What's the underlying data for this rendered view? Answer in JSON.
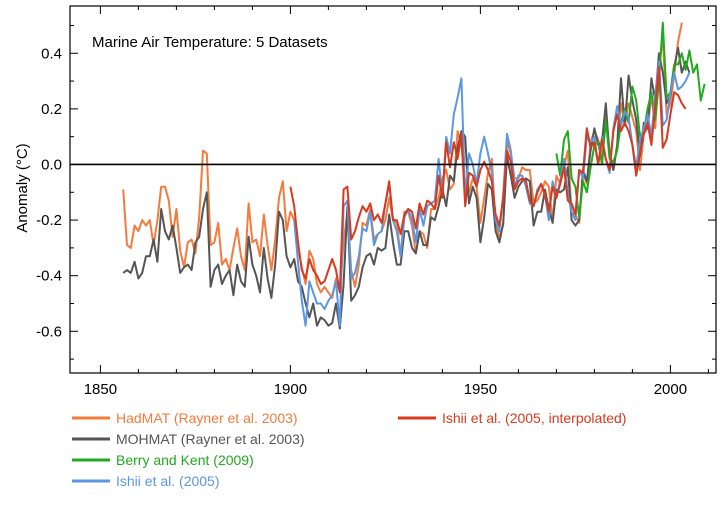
{
  "chart_data": {
    "type": "line",
    "title": "Marine Air Temperature: 5 Datasets",
    "xlabel": "",
    "ylabel": "Anomaly (°C)",
    "xlim": [
      1842,
      2012
    ],
    "ylim": [
      -0.75,
      0.57
    ],
    "xticks": [
      1850,
      1900,
      1950,
      2000
    ],
    "xtick_labels": [
      "1850",
      "1900",
      "1950",
      "2000"
    ],
    "yticks": [
      -0.6,
      -0.4,
      -0.2,
      0.0,
      0.2,
      0.4
    ],
    "ytick_labels": [
      "-0.6",
      "-0.4",
      "-0.2",
      "0.0",
      "0.2",
      "0.4"
    ],
    "zero_line": true,
    "grid": false,
    "legend_position": "bottom",
    "series": [
      {
        "name": "HadMAT (Rayner et al. 2003)",
        "color": "#f47b3c",
        "x": [
          1856,
          1857,
          1858,
          1859,
          1860,
          1861,
          1862,
          1863,
          1864,
          1865,
          1866,
          1867,
          1868,
          1869,
          1870,
          1871,
          1872,
          1873,
          1874,
          1875,
          1876,
          1877,
          1878,
          1879,
          1880,
          1881,
          1882,
          1883,
          1884,
          1885,
          1886,
          1887,
          1888,
          1889,
          1890,
          1891,
          1892,
          1893,
          1894,
          1895,
          1896,
          1897,
          1898,
          1899,
          1900,
          1901,
          1902,
          1903,
          1904,
          1905,
          1906,
          1907,
          1908,
          1909,
          1910,
          1911,
          1912,
          1913,
          1914,
          1915,
          1916,
          1917,
          1918,
          1919,
          1920,
          1921,
          1922,
          1923,
          1924,
          1925,
          1926,
          1927,
          1928,
          1929,
          1930,
          1931,
          1932,
          1933,
          1934,
          1935,
          1936,
          1937,
          1938,
          1939,
          1940,
          1941,
          1942,
          1943,
          1944,
          1945,
          1946,
          1947,
          1948,
          1949,
          1950,
          1951,
          1952,
          1953,
          1954,
          1955,
          1956,
          1957,
          1958,
          1959,
          1960,
          1961,
          1962,
          1963,
          1964,
          1965,
          1966,
          1967,
          1968,
          1969,
          1970,
          1971,
          1972,
          1973,
          1974,
          1975,
          1976,
          1977,
          1978,
          1979,
          1980,
          1981,
          1982,
          1983,
          1984,
          1985,
          1986,
          1987,
          1988,
          1989,
          1990,
          1991,
          1992,
          1993,
          1994,
          1995,
          1996,
          1997,
          1998,
          1999,
          2000,
          2001,
          2002,
          2003
        ],
        "y": [
          -0.09,
          -0.29,
          -0.3,
          -0.22,
          -0.24,
          -0.2,
          -0.22,
          -0.2,
          -0.29,
          -0.2,
          -0.08,
          -0.08,
          -0.13,
          -0.26,
          -0.16,
          -0.31,
          -0.37,
          -0.28,
          -0.27,
          -0.32,
          -0.19,
          0.05,
          0.04,
          -0.29,
          -0.28,
          -0.21,
          -0.36,
          -0.34,
          -0.38,
          -0.3,
          -0.23,
          -0.33,
          -0.38,
          -0.14,
          -0.28,
          -0.27,
          -0.33,
          -0.18,
          -0.29,
          -0.38,
          -0.27,
          -0.12,
          -0.06,
          -0.24,
          -0.17,
          -0.2,
          -0.3,
          -0.37,
          -0.43,
          -0.31,
          -0.34,
          -0.43,
          -0.46,
          -0.44,
          -0.46,
          -0.48,
          -0.41,
          -0.46,
          -0.28,
          -0.17,
          -0.38,
          -0.44,
          -0.36,
          -0.21,
          -0.22,
          -0.16,
          -0.27,
          -0.25,
          -0.24,
          -0.2,
          -0.12,
          -0.2,
          -0.21,
          -0.33,
          -0.17,
          -0.17,
          -0.22,
          -0.32,
          -0.24,
          -0.25,
          -0.3,
          -0.16,
          -0.16,
          -0.12,
          -0.05,
          -0.02,
          -0.09,
          -0.07,
          0.12,
          0.07,
          -0.08,
          -0.1,
          -0.05,
          -0.08,
          -0.21,
          -0.12,
          -0.03,
          0.02,
          -0.22,
          -0.26,
          -0.22,
          0.08,
          0.04,
          -0.05,
          -0.05,
          -0.01,
          -0.02,
          -0.02,
          -0.14,
          -0.13,
          -0.1,
          -0.06,
          -0.08,
          -0.2,
          -0.04,
          -0.07,
          -0.01,
          0.05,
          -0.17,
          -0.18,
          -0.21,
          -0.03,
          -0.07,
          0.08,
          0.12,
          0.09,
          0.03,
          0.17,
          0.05,
          -0.02,
          0.07,
          0.22,
          0.14,
          0.22,
          0.17,
          0.12,
          -0.02,
          0.11,
          0.13,
          0.25,
          0.13,
          0.35,
          0.46,
          0.18,
          0.22,
          0.32,
          0.44,
          0.51
        ]
      },
      {
        "name": "MOHMAT (Rayner et al. 2003)",
        "color": "#555555",
        "x": [
          1856,
          1857,
          1858,
          1859,
          1860,
          1861,
          1862,
          1863,
          1864,
          1865,
          1866,
          1867,
          1868,
          1869,
          1870,
          1871,
          1872,
          1873,
          1874,
          1875,
          1876,
          1877,
          1878,
          1879,
          1880,
          1881,
          1882,
          1883,
          1884,
          1885,
          1886,
          1887,
          1888,
          1889,
          1890,
          1891,
          1892,
          1893,
          1894,
          1895,
          1896,
          1897,
          1898,
          1899,
          1900,
          1901,
          1902,
          1903,
          1904,
          1905,
          1906,
          1907,
          1908,
          1909,
          1910,
          1911,
          1912,
          1913,
          1914,
          1915,
          1916,
          1917,
          1918,
          1919,
          1920,
          1921,
          1922,
          1923,
          1924,
          1925,
          1926,
          1927,
          1928,
          1929,
          1930,
          1931,
          1932,
          1933,
          1934,
          1935,
          1936,
          1937,
          1938,
          1939,
          1940,
          1941,
          1942,
          1943,
          1944,
          1945,
          1946,
          1947,
          1948,
          1949,
          1950,
          1951,
          1952,
          1953,
          1954,
          1955,
          1956,
          1957,
          1958,
          1959,
          1960,
          1961,
          1962,
          1963,
          1964,
          1965,
          1966,
          1967,
          1968,
          1969,
          1970,
          1971,
          1972,
          1973,
          1974,
          1975,
          1976,
          1977,
          1978,
          1979,
          1980,
          1981,
          1982,
          1983,
          1984,
          1985,
          1986,
          1987,
          1988,
          1989,
          1990,
          1991,
          1992,
          1993,
          1994,
          1995,
          1996,
          1997,
          1998,
          1999,
          2000,
          2001,
          2002,
          2003,
          2004,
          2005
        ],
        "y": [
          -0.39,
          -0.38,
          -0.39,
          -0.35,
          -0.41,
          -0.39,
          -0.33,
          -0.33,
          -0.27,
          -0.35,
          -0.16,
          -0.24,
          -0.27,
          -0.22,
          -0.3,
          -0.39,
          -0.37,
          -0.36,
          -0.38,
          -0.28,
          -0.26,
          -0.16,
          -0.1,
          -0.44,
          -0.38,
          -0.36,
          -0.43,
          -0.4,
          -0.38,
          -0.47,
          -0.36,
          -0.42,
          -0.44,
          -0.26,
          -0.36,
          -0.4,
          -0.46,
          -0.3,
          -0.41,
          -0.48,
          -0.36,
          -0.17,
          -0.2,
          -0.33,
          -0.37,
          -0.34,
          -0.42,
          -0.44,
          -0.5,
          -0.55,
          -0.5,
          -0.58,
          -0.55,
          -0.56,
          -0.58,
          -0.57,
          -0.5,
          -0.59,
          -0.43,
          -0.15,
          -0.49,
          -0.47,
          -0.44,
          -0.37,
          -0.33,
          -0.32,
          -0.36,
          -0.3,
          -0.31,
          -0.3,
          -0.18,
          -0.28,
          -0.36,
          -0.36,
          -0.24,
          -0.24,
          -0.3,
          -0.32,
          -0.24,
          -0.29,
          -0.29,
          -0.19,
          -0.2,
          -0.15,
          -0.09,
          -0.15,
          -0.04,
          -0.06,
          0.06,
          0.12,
          0.1,
          -0.14,
          -0.08,
          -0.12,
          -0.28,
          -0.19,
          -0.07,
          -0.09,
          -0.24,
          -0.28,
          -0.21,
          0.03,
          -0.04,
          -0.12,
          -0.08,
          -0.06,
          -0.05,
          -0.06,
          -0.22,
          -0.17,
          -0.17,
          -0.09,
          -0.16,
          -0.21,
          -0.09,
          -0.1,
          -0.09,
          -0.01,
          -0.2,
          -0.22,
          -0.2,
          -0.02,
          -0.06,
          0.05,
          0.13,
          0.07,
          0.08,
          0.22,
          0.03,
          -0.02,
          0.07,
          0.31,
          0.14,
          0.32,
          0.23,
          0.16,
          0.03,
          0.15,
          0.13,
          0.31,
          0.23,
          0.4,
          0.33,
          0.22,
          0.25,
          0.35,
          0.42,
          0.33,
          0.37,
          0.33
        ]
      },
      {
        "name": "Berry and Kent (2009)",
        "color": "#22a91f",
        "x": [
          1970,
          1971,
          1972,
          1973,
          1974,
          1975,
          1976,
          1977,
          1978,
          1979,
          1980,
          1981,
          1982,
          1983,
          1984,
          1985,
          1986,
          1987,
          1988,
          1989,
          1990,
          1991,
          1992,
          1993,
          1994,
          1995,
          1996,
          1997,
          1998,
          1999,
          2000,
          2001,
          2002,
          2003,
          2004,
          2005,
          2006,
          2007,
          2008,
          2009
        ],
        "y": [
          0.04,
          -0.04,
          0.09,
          0.12,
          -0.05,
          -0.08,
          -0.19,
          -0.06,
          -0.1,
          -0.01,
          0.07,
          0.08,
          0.0,
          0.16,
          0.02,
          0.01,
          0.05,
          0.15,
          0.2,
          0.15,
          0.28,
          0.23,
          0.1,
          0.12,
          0.2,
          0.26,
          0.16,
          0.3,
          0.51,
          0.24,
          0.26,
          0.36,
          0.36,
          0.4,
          0.34,
          0.41,
          0.33,
          0.36,
          0.23,
          0.29
        ]
      },
      {
        "name": "Ishii et al. (2005)",
        "color": "#5b97e2",
        "x": [
          1901,
          1902,
          1903,
          1904,
          1905,
          1906,
          1907,
          1908,
          1909,
          1910,
          1911,
          1912,
          1913,
          1914,
          1915,
          1916,
          1917,
          1918,
          1919,
          1920,
          1921,
          1922,
          1923,
          1924,
          1925,
          1926,
          1927,
          1928,
          1929,
          1930,
          1931,
          1932,
          1933,
          1934,
          1935,
          1936,
          1937,
          1938,
          1939,
          1940,
          1941,
          1942,
          1943,
          1944,
          1945,
          1946,
          1947,
          1948,
          1949,
          1950,
          1951,
          1952,
          1953,
          1954,
          1955,
          1956,
          1957,
          1958,
          1959,
          1960,
          1961,
          1962,
          1963,
          1964,
          1965,
          1966,
          1967,
          1968,
          1969,
          1970,
          1971,
          1972,
          1973,
          1974,
          1975,
          1976,
          1977,
          1978,
          1979,
          1980,
          1981,
          1982,
          1983,
          1984,
          1985,
          1986,
          1987,
          1988,
          1989,
          1990,
          1991,
          1992,
          1993,
          1994,
          1995,
          1996,
          1997,
          1998,
          1999,
          2000,
          2001,
          2002,
          2003,
          2004,
          2005
        ],
        "y": [
          -0.2,
          -0.35,
          -0.49,
          -0.58,
          -0.42,
          -0.46,
          -0.5,
          -0.5,
          -0.52,
          -0.49,
          -0.47,
          -0.42,
          -0.58,
          -0.15,
          -0.13,
          -0.41,
          -0.39,
          -0.33,
          -0.23,
          -0.24,
          -0.17,
          -0.29,
          -0.25,
          -0.24,
          -0.14,
          -0.07,
          -0.2,
          -0.24,
          -0.33,
          -0.19,
          -0.16,
          -0.2,
          -0.28,
          -0.16,
          -0.22,
          -0.15,
          -0.14,
          -0.13,
          0.02,
          -0.11,
          0.1,
          0.04,
          0.18,
          0.24,
          0.31,
          -0.12,
          0.04,
          0.0,
          -0.07,
          0.04,
          0.1,
          0.04,
          -0.03,
          -0.2,
          -0.24,
          -0.11,
          0.11,
          0.05,
          -0.08,
          -0.04,
          -0.04,
          -0.08,
          -0.14,
          -0.15,
          -0.09,
          -0.07,
          -0.11,
          -0.2,
          -0.06,
          -0.12,
          -0.06,
          0.02,
          -0.11,
          -0.17,
          -0.2,
          -0.02,
          -0.05,
          0.1,
          0.08,
          0.1,
          0.0,
          0.1,
          0.02,
          -0.03,
          0.13,
          0.21,
          0.14,
          0.19,
          0.17,
          0.07,
          -0.01,
          0.09,
          0.13,
          0.18,
          0.1,
          0.25,
          0.37,
          0.14,
          0.16,
          0.26,
          0.33,
          0.27,
          0.28,
          0.3,
          0.33
        ]
      },
      {
        "name": "Ishii et al. (2005, interpolated)",
        "color": "#d9391c",
        "x": [
          1900,
          1901,
          1902,
          1903,
          1904,
          1905,
          1906,
          1907,
          1908,
          1909,
          1910,
          1911,
          1912,
          1913,
          1914,
          1915,
          1916,
          1917,
          1918,
          1919,
          1920,
          1921,
          1922,
          1923,
          1924,
          1925,
          1926,
          1927,
          1928,
          1929,
          1930,
          1931,
          1932,
          1933,
          1934,
          1935,
          1936,
          1937,
          1938,
          1939,
          1940,
          1941,
          1942,
          1943,
          1944,
          1945,
          1946,
          1947,
          1948,
          1949,
          1950,
          1951,
          1952,
          1953,
          1954,
          1955,
          1956,
          1957,
          1958,
          1959,
          1960,
          1961,
          1962,
          1963,
          1964,
          1965,
          1966,
          1967,
          1968,
          1969,
          1970,
          1971,
          1972,
          1973,
          1974,
          1975,
          1976,
          1977,
          1978,
          1979,
          1980,
          1981,
          1982,
          1983,
          1984,
          1985,
          1986,
          1987,
          1988,
          1989,
          1990,
          1991,
          1992,
          1993,
          1994,
          1995,
          1996,
          1997,
          1998,
          1999,
          2000,
          2001,
          2002,
          2003,
          2004
        ],
        "y": [
          -0.08,
          -0.15,
          -0.28,
          -0.38,
          -0.41,
          -0.34,
          -0.38,
          -0.4,
          -0.43,
          -0.42,
          -0.38,
          -0.34,
          -0.38,
          -0.46,
          -0.09,
          -0.08,
          -0.27,
          -0.24,
          -0.19,
          -0.15,
          -0.17,
          -0.14,
          -0.2,
          -0.18,
          -0.21,
          -0.14,
          -0.06,
          -0.2,
          -0.2,
          -0.25,
          -0.18,
          -0.16,
          -0.17,
          -0.23,
          -0.14,
          -0.18,
          -0.13,
          -0.14,
          -0.16,
          -0.04,
          -0.12,
          0.08,
          -0.01,
          0.08,
          0.02,
          0.11,
          -0.15,
          -0.03,
          -0.04,
          -0.08,
          -0.02,
          0.01,
          -0.02,
          -0.06,
          -0.18,
          -0.22,
          -0.12,
          0.05,
          0.01,
          -0.09,
          -0.06,
          -0.05,
          -0.06,
          -0.13,
          -0.15,
          -0.1,
          -0.07,
          -0.11,
          -0.17,
          -0.08,
          -0.12,
          -0.07,
          -0.01,
          -0.13,
          -0.14,
          -0.18,
          -0.02,
          -0.03,
          0.13,
          0.06,
          0.08,
          0.0,
          0.09,
          0.02,
          -0.02,
          0.12,
          0.18,
          0.12,
          0.15,
          0.12,
          0.07,
          -0.04,
          0.04,
          0.11,
          0.15,
          0.07,
          0.21,
          0.35,
          0.06,
          0.09,
          0.18,
          0.26,
          0.25,
          0.22,
          0.2
        ]
      }
    ],
    "legend": [
      {
        "label": "HadMAT (Rayner et al. 2003)",
        "color": "#f47b3c"
      },
      {
        "label": "MOHMAT (Rayner et al. 2003)",
        "color": "#555555"
      },
      {
        "label": "Berry and Kent (2009)",
        "color": "#22a91f"
      },
      {
        "label": "Ishii et al. (2005)",
        "color": "#5b97e2"
      },
      {
        "label": "Ishii et al. (2005, interpolated)",
        "color": "#d9391c"
      }
    ]
  }
}
